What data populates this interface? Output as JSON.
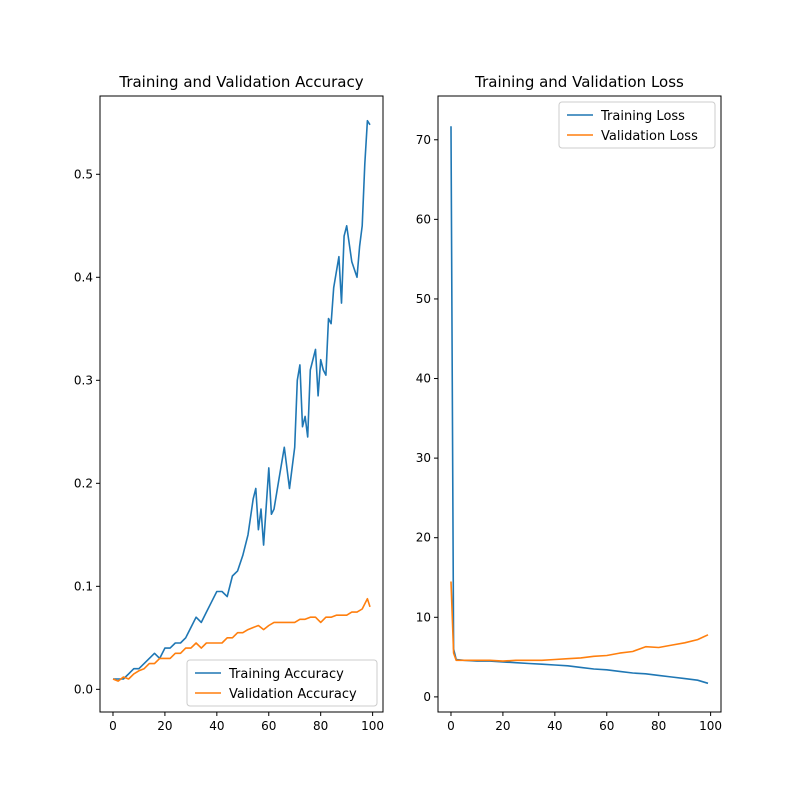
{
  "chart_data": [
    {
      "type": "line",
      "title": "Training and Validation Accuracy",
      "xlabel": "",
      "ylabel": "",
      "xlim": [
        -5,
        104
      ],
      "ylim": [
        -0.022,
        0.576
      ],
      "xticks": [
        0,
        20,
        40,
        60,
        80,
        100
      ],
      "yticks": [
        0.0,
        0.1,
        0.2,
        0.3,
        0.4,
        0.5
      ],
      "xtick_labels": [
        "0",
        "20",
        "40",
        "60",
        "80",
        "100"
      ],
      "ytick_labels": [
        "0.0",
        "0.1",
        "0.2",
        "0.3",
        "0.4",
        "0.5"
      ],
      "legend_position": "lower-right",
      "grid": false,
      "series": [
        {
          "name": "Training Accuracy",
          "color": "#1f77b4",
          "x": [
            0,
            2,
            4,
            6,
            8,
            10,
            12,
            14,
            16,
            18,
            20,
            22,
            24,
            26,
            28,
            30,
            32,
            34,
            36,
            38,
            40,
            42,
            44,
            46,
            48,
            50,
            52,
            54,
            55,
            56,
            57,
            58,
            60,
            61,
            62,
            64,
            66,
            68,
            69,
            70,
            71,
            72,
            73,
            74,
            75,
            76,
            78,
            79,
            80,
            81,
            82,
            83,
            84,
            85,
            86,
            87,
            88,
            89,
            90,
            92,
            94,
            95,
            96,
            97,
            98,
            99
          ],
          "y": [
            0.01,
            0.01,
            0.01,
            0.015,
            0.02,
            0.02,
            0.025,
            0.03,
            0.035,
            0.03,
            0.04,
            0.04,
            0.045,
            0.045,
            0.05,
            0.06,
            0.07,
            0.065,
            0.075,
            0.085,
            0.095,
            0.095,
            0.09,
            0.11,
            0.115,
            0.13,
            0.15,
            0.185,
            0.195,
            0.155,
            0.175,
            0.14,
            0.215,
            0.17,
            0.175,
            0.205,
            0.235,
            0.195,
            0.215,
            0.235,
            0.3,
            0.315,
            0.255,
            0.265,
            0.245,
            0.31,
            0.33,
            0.285,
            0.32,
            0.31,
            0.305,
            0.36,
            0.355,
            0.39,
            0.405,
            0.42,
            0.375,
            0.44,
            0.45,
            0.415,
            0.4,
            0.43,
            0.45,
            0.51,
            0.552,
            0.548
          ]
        },
        {
          "name": "Validation Accuracy",
          "color": "#ff7f0e",
          "x": [
            0,
            2,
            4,
            6,
            8,
            10,
            12,
            14,
            16,
            18,
            20,
            22,
            24,
            26,
            28,
            30,
            32,
            34,
            36,
            38,
            40,
            42,
            44,
            46,
            48,
            50,
            52,
            54,
            56,
            58,
            60,
            62,
            64,
            66,
            68,
            70,
            72,
            74,
            76,
            78,
            80,
            82,
            84,
            86,
            88,
            90,
            92,
            94,
            96,
            98,
            99
          ],
          "y": [
            0.01,
            0.008,
            0.012,
            0.01,
            0.015,
            0.018,
            0.02,
            0.025,
            0.025,
            0.03,
            0.03,
            0.03,
            0.035,
            0.035,
            0.04,
            0.04,
            0.045,
            0.04,
            0.045,
            0.045,
            0.045,
            0.045,
            0.05,
            0.05,
            0.055,
            0.055,
            0.058,
            0.06,
            0.062,
            0.058,
            0.062,
            0.065,
            0.065,
            0.065,
            0.065,
            0.065,
            0.068,
            0.068,
            0.07,
            0.07,
            0.065,
            0.07,
            0.07,
            0.072,
            0.072,
            0.072,
            0.075,
            0.075,
            0.078,
            0.088,
            0.08
          ]
        }
      ]
    },
    {
      "type": "line",
      "title": "Training and Validation Loss",
      "xlabel": "",
      "ylabel": "",
      "xlim": [
        -5,
        104
      ],
      "ylim": [
        -1.9,
        75.5
      ],
      "xticks": [
        0,
        20,
        40,
        60,
        80,
        100
      ],
      "yticks": [
        0,
        10,
        20,
        30,
        40,
        50,
        60,
        70
      ],
      "xtick_labels": [
        "0",
        "20",
        "40",
        "60",
        "80",
        "100"
      ],
      "ytick_labels": [
        "0",
        "10",
        "20",
        "30",
        "40",
        "50",
        "60",
        "70"
      ],
      "legend_position": "upper-right",
      "grid": false,
      "series": [
        {
          "name": "Training Loss",
          "color": "#1f77b4",
          "x": [
            0,
            1,
            2,
            5,
            10,
            15,
            20,
            25,
            30,
            35,
            40,
            45,
            50,
            55,
            60,
            65,
            70,
            75,
            80,
            85,
            90,
            95,
            99
          ],
          "y": [
            71.7,
            6.0,
            4.7,
            4.6,
            4.5,
            4.5,
            4.4,
            4.3,
            4.2,
            4.1,
            4.0,
            3.9,
            3.7,
            3.5,
            3.4,
            3.2,
            3.0,
            2.9,
            2.7,
            2.5,
            2.3,
            2.1,
            1.7
          ]
        },
        {
          "name": "Validation Loss",
          "color": "#ff7f0e",
          "x": [
            0,
            1,
            2,
            5,
            10,
            15,
            20,
            25,
            30,
            35,
            40,
            45,
            50,
            55,
            60,
            65,
            70,
            75,
            80,
            85,
            90,
            95,
            99
          ],
          "y": [
            14.5,
            5.5,
            4.6,
            4.6,
            4.6,
            4.6,
            4.5,
            4.6,
            4.6,
            4.6,
            4.7,
            4.8,
            4.9,
            5.1,
            5.2,
            5.5,
            5.7,
            6.3,
            6.2,
            6.5,
            6.8,
            7.2,
            7.8
          ]
        }
      ]
    }
  ]
}
